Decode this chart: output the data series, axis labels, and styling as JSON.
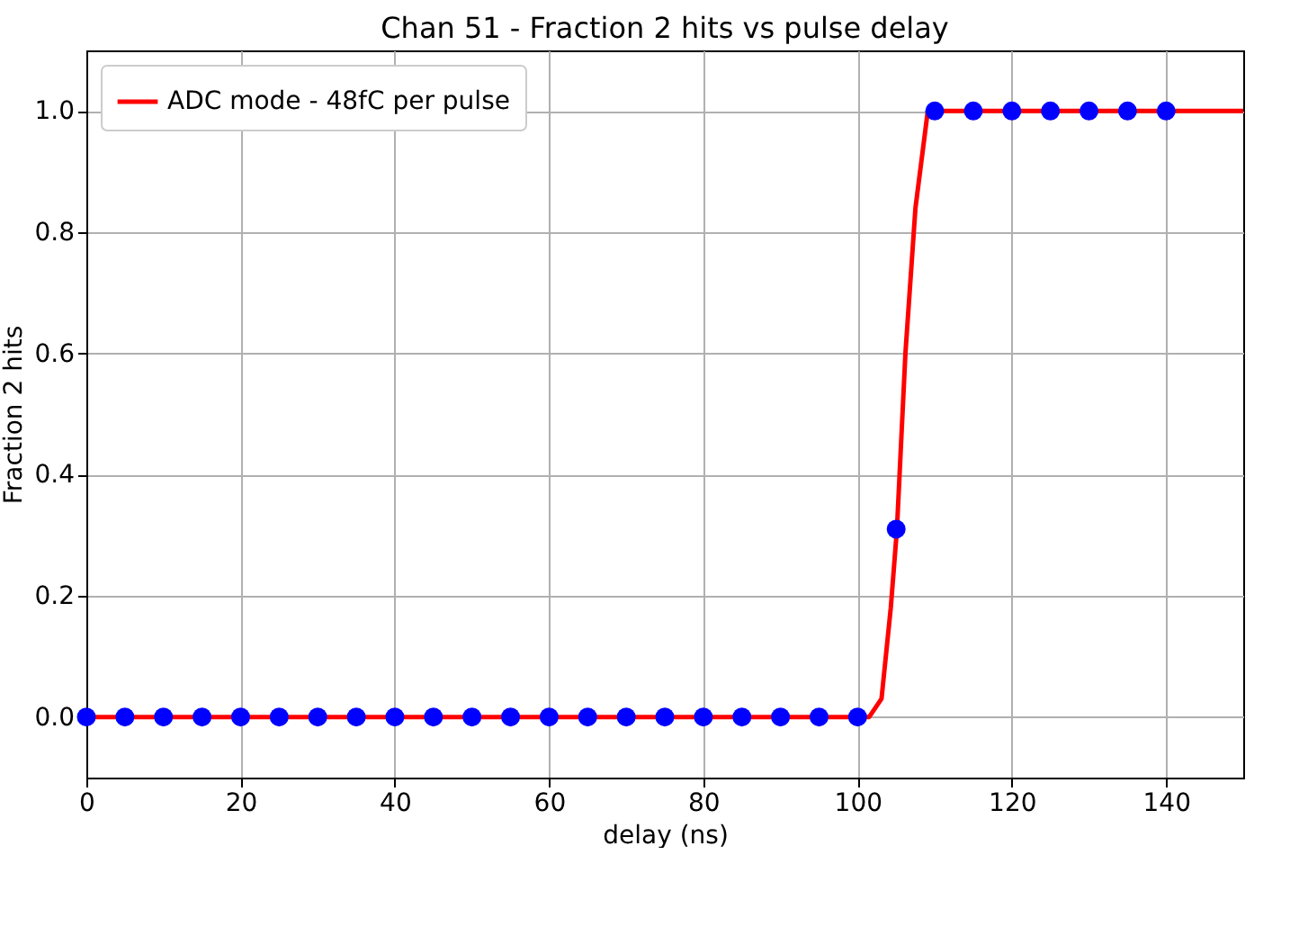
{
  "chart_data": {
    "type": "line",
    "title": "Chan 51 - Fraction 2 hits vs pulse delay",
    "xlabel": "delay (ns)",
    "ylabel": "Fraction 2 hits",
    "xlim": [
      0,
      150
    ],
    "xticks": [
      0,
      20,
      40,
      60,
      80,
      100,
      120,
      140
    ],
    "ylim": [
      -0.1,
      1.1
    ],
    "yticks": [
      {
        "value": 0,
        "label": "0.0"
      },
      {
        "value": 0.2,
        "label": "0.2"
      },
      {
        "value": 0.4,
        "label": "0.4"
      },
      {
        "value": 0.6,
        "label": "0.6"
      },
      {
        "value": 0.8,
        "label": "0.8"
      },
      {
        "value": 1,
        "label": "1.0"
      }
    ],
    "grid": true,
    "legend": "top left",
    "line_style": "solid",
    "series": [
      {
        "name": "ADC mode - 48fC per pulse",
        "color": "#ff0000",
        "x": [
          0,
          101.5,
          103.1,
          104.3,
          105.1,
          106.2,
          107.5,
          109.1,
          150
        ],
        "values": [
          0,
          0,
          0.03,
          0.18,
          0.31,
          0.6,
          0.84,
          1,
          1
        ]
      },
      {
        "type": "scatter",
        "marker": "circle",
        "color": "#0000ff",
        "x": [
          0,
          5,
          10,
          15,
          20,
          25,
          30,
          35,
          40,
          45,
          50,
          55,
          60,
          65,
          70,
          75,
          80,
          85,
          90,
          95,
          100,
          105,
          110,
          115,
          120,
          125,
          130,
          135,
          140
        ],
        "values": [
          0,
          0,
          0,
          0,
          0,
          0,
          0,
          0,
          0,
          0,
          0,
          0,
          0,
          0,
          0,
          0,
          0,
          0,
          0,
          0,
          0,
          0.31,
          1,
          1,
          1,
          1,
          1,
          1,
          1
        ]
      }
    ]
  }
}
